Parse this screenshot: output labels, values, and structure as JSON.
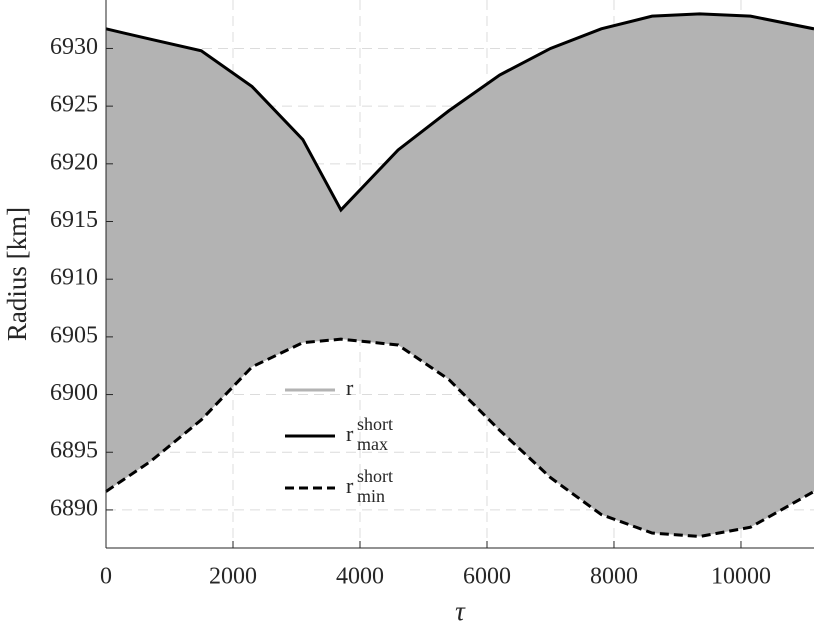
{
  "chart_data": {
    "type": "band",
    "x_label": "τ",
    "y_label": "Radius [km]",
    "x": [
      0,
      700,
      1500,
      2300,
      3100,
      3700,
      4600,
      5400,
      6200,
      7000,
      7800,
      8600,
      9350,
      10150,
      11150
    ],
    "fill": {
      "name": "r",
      "color": "#b3b3b3"
    },
    "series": [
      {
        "name": "r",
        "superscript": "short",
        "subscript": "max",
        "color": "#000000",
        "dash": false,
        "values": [
          6931.7,
          6930.8,
          6929.8,
          6926.7,
          6922.1,
          6916.0,
          6921.2,
          6924.6,
          6927.7,
          6930.0,
          6931.7,
          6932.8,
          6933.0,
          6932.8,
          6931.7
        ]
      },
      {
        "name": "r",
        "superscript": "short",
        "subscript": "min",
        "color": "#000000",
        "dash": true,
        "values": [
          6891.6,
          6894.2,
          6897.8,
          6902.4,
          6904.5,
          6904.8,
          6904.3,
          6901.3,
          6896.9,
          6892.8,
          6889.6,
          6888.0,
          6887.7,
          6888.5,
          6891.6
        ]
      }
    ],
    "xlim": [
      0,
      11150
    ],
    "ylim": [
      6886.7,
      6934.2
    ],
    "xticks": [
      0,
      2000,
      4000,
      6000,
      8000,
      10000
    ],
    "yticks": [
      6890,
      6895,
      6900,
      6905,
      6910,
      6915,
      6920,
      6925,
      6930
    ],
    "grid": true
  }
}
